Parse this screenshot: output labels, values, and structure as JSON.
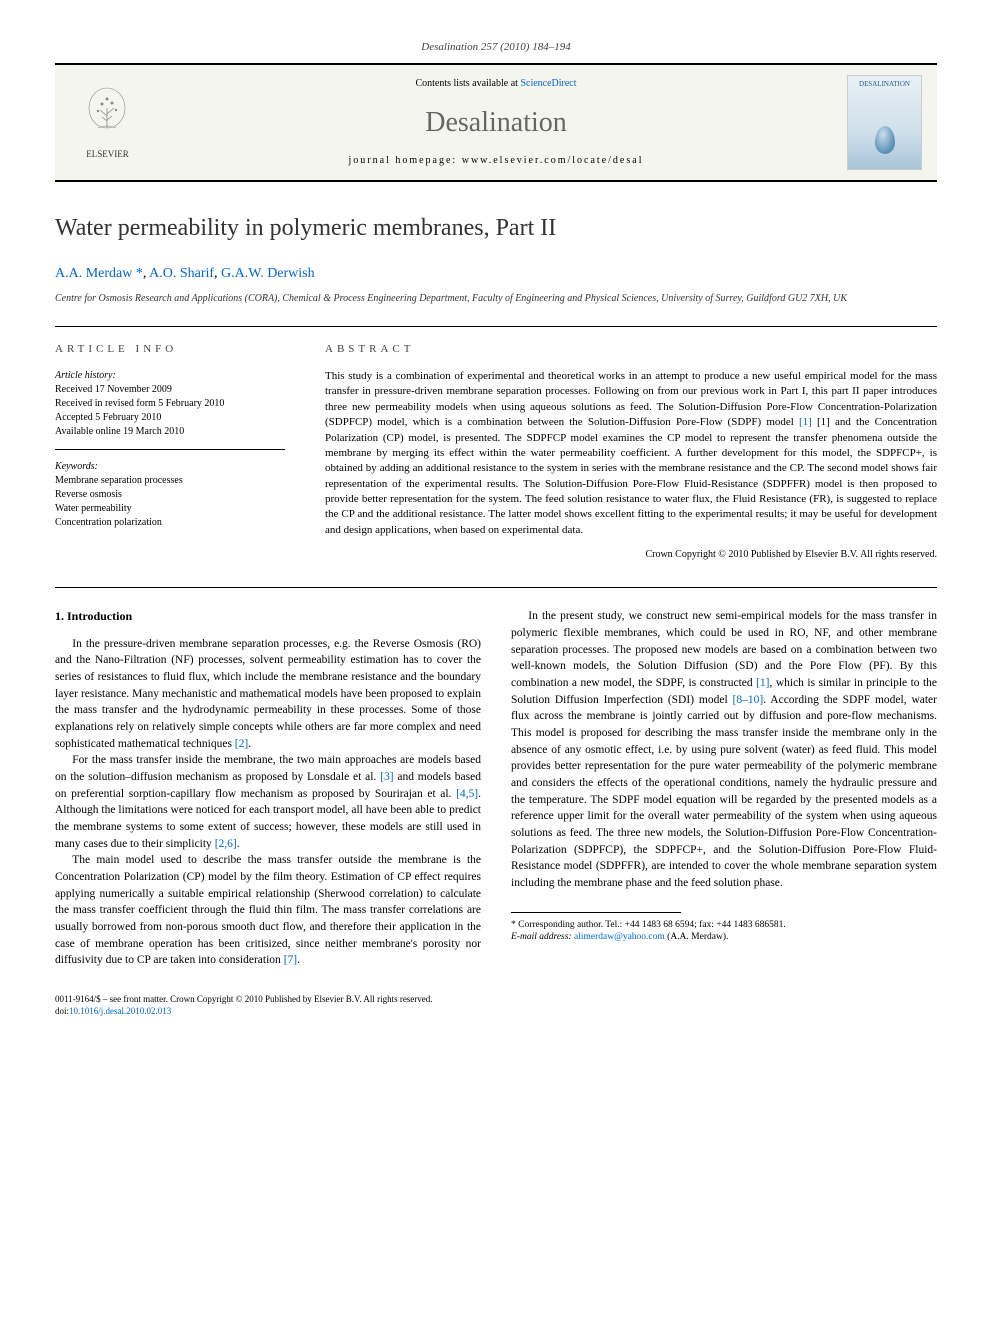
{
  "citation": "Desalination 257 (2010) 184–194",
  "banner": {
    "publisher": "ELSEVIER",
    "contents_prefix": "Contents lists available at ",
    "contents_link": "ScienceDirect",
    "journal": "Desalination",
    "homepage_label": "journal homepage: ",
    "homepage_url": "www.elsevier.com/locate/desal",
    "cover_label": "DESALINATION"
  },
  "article": {
    "title": "Water permeability in polymeric membranes, Part II",
    "authors_html": "A.A. Merdaw *, A.O. Sharif, G.A.W. Derwish",
    "author_names": [
      "A.A. Merdaw",
      "A.O. Sharif",
      "G.A.W. Derwish"
    ],
    "corresponding_marker": "*",
    "affiliation": "Centre for Osmosis Research and Applications (CORA), Chemical & Process Engineering Department, Faculty of Engineering and Physical Sciences, University of Surrey, Guildford GU2 7XH, UK"
  },
  "article_info": {
    "heading": "ARTICLE INFO",
    "history_label": "Article history:",
    "history": [
      "Received 17 November 2009",
      "Received in revised form 5 February 2010",
      "Accepted 5 February 2010",
      "Available online 19 March 2010"
    ],
    "keywords_label": "Keywords:",
    "keywords": [
      "Membrane separation processes",
      "Reverse osmosis",
      "Water permeability",
      "Concentration polarization"
    ]
  },
  "abstract": {
    "heading": "ABSTRACT",
    "text": "This study is a combination of experimental and theoretical works in an attempt to produce a new useful empirical model for the mass transfer in pressure-driven membrane separation processes. Following on from our previous work in Part I, this part II paper introduces three new permeability models when using aqueous solutions as feed. The Solution-Diffusion Pore-Flow Concentration-Polarization (SDPFCP) model, which is a combination between the Solution-Diffusion Pore-Flow (SDPF) model [1] and the Concentration Polarization (CP) model, is presented. The SDPFCP model examines the CP model to represent the transfer phenomena outside the membrane by merging its effect within the water permeability coefficient. A further development for this model, the SDPFCP+, is obtained by adding an additional resistance to the system in series with the membrane resistance and the CP. The second model shows fair representation of the experimental results. The Solution-Diffusion Pore-Flow Fluid-Resistance (SDPFFR) model is then proposed to provide better representation for the system. The feed solution resistance to water flux, the Fluid Resistance (FR), is suggested to replace the CP and the additional resistance. The latter model shows excellent fitting to the experimental results; it may be useful for development and design applications, when based on experimental data.",
    "ref_link": "[1]",
    "copyright": "Crown Copyright © 2010 Published by Elsevier B.V. All rights reserved."
  },
  "body": {
    "section1_heading": "1. Introduction",
    "p1": "In the pressure-driven membrane separation processes, e.g. the Reverse Osmosis (RO) and the Nano-Filtration (NF) processes, solvent permeability estimation has to cover the series of resistances to fluid flux, which include the membrane resistance and the boundary layer resistance. Many mechanistic and mathematical models have been proposed to explain the mass transfer and the hydrodynamic permeability in these processes. Some of those explanations rely on relatively simple concepts while others are far more complex and need sophisticated mathematical techniques ",
    "p1_ref": "[2]",
    "p1_tail": ".",
    "p2a": "For the mass transfer inside the membrane, the two main approaches are models based on the solution–diffusion mechanism as proposed by Lonsdale et al. ",
    "p2_ref1": "[3]",
    "p2b": " and models based on preferential sorption-capillary flow mechanism as proposed by Sourirajan et al. ",
    "p2_ref2": "[4,5]",
    "p2c": ". Although the limitations were noticed for each transport model, all have been able to predict the membrane systems to some extent of success; however, these models are still used in many cases due to their simplicity ",
    "p2_ref3": "[2,6]",
    "p2d": ".",
    "p3": "The main model used to describe the mass transfer outside the membrane is the Concentration Polarization (CP) model by the film theory. Estimation of CP effect requires applying numerically a suitable empirical relationship (Sherwood correlation) to calculate the mass transfer coefficient through the fluid thin film. The mass transfer correlations are usually borrowed from non-porous smooth duct flow, and therefore their application in the case of membrane operation has been critisized, since neither membrane's porosity nor diffusivity due to CP are taken into consideration ",
    "p3_ref": "[7]",
    "p3_tail": ".",
    "p4a": "In the present study, we construct new semi-empirical models for the mass transfer in polymeric flexible membranes, which could be used in RO, NF, and other membrane separation processes. The proposed new models are based on a combination between two well-known models, the Solution Diffusion (SD) and the Pore Flow (PF). By this combination a new model, the SDPF, is constructed ",
    "p4_ref1": "[1]",
    "p4b": ", which is similar in principle to the Solution Diffusion Imperfection (SDI) model ",
    "p4_ref2": "[8–10]",
    "p4c": ". According the SDPF model, water flux across the membrane is jointly carried out by diffusion and pore-flow mechanisms. This model is proposed for describing the mass transfer inside the membrane only in the absence of any osmotic effect, i.e. by using pure solvent (water) as feed fluid. This model provides better representation for the pure water permeability of the polymeric membrane and considers the effects of the operational conditions, namely the hydraulic pressure and the temperature. The SDPF model equation will be regarded by the presented models as a reference upper limit for the overall water permeability of the system when using aqueous solutions as feed. The three new models, the Solution-Diffusion Pore-Flow Concentration-Polarization (SDPFCP), the SDPFCP+, and the Solution-Diffusion Pore-Flow Fluid-Resistance model (SDPFFR), are intended to cover the whole membrane separation system including the membrane phase and the feed solution phase."
  },
  "footnote": {
    "corresponding": "* Corresponding author. Tel.: +44 1483 68 6594; fax: +44 1483 686581.",
    "email_label": "E-mail address: ",
    "email": "alimerdaw@yahoo.com",
    "email_name": " (A.A. Merdaw)."
  },
  "footer": {
    "line1": "0011-9164/$ – see front matter. Crown Copyright © 2010 Published by Elsevier B.V. All rights reserved.",
    "doi_label": "doi:",
    "doi": "10.1016/j.desal.2010.02.013"
  },
  "colors": {
    "link": "#0066cc",
    "text": "#000000",
    "journal_name": "#666666",
    "banner_bg": "#f5f5f0"
  }
}
